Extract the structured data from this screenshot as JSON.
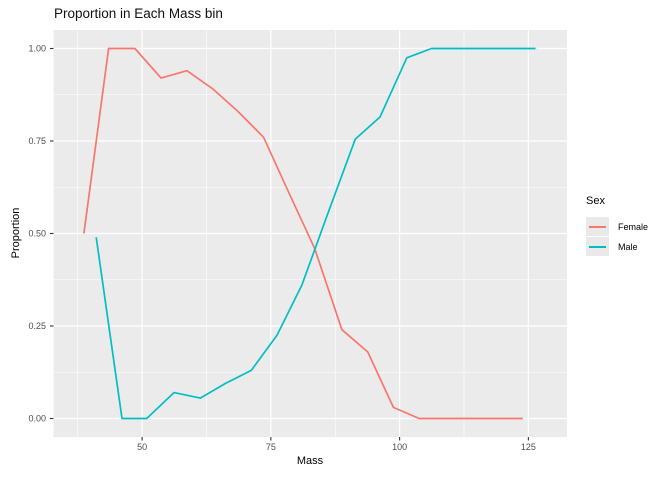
{
  "title": "Proportion in Each Mass bin",
  "colors": {
    "panel_background": "#EBEBEB",
    "gridline": "#FFFFFF",
    "tick_mark": "#333333",
    "tick_label": "#4D4D4D",
    "female_line": "#F8766D",
    "male_line": "#00BFC4",
    "legend_key_background": "#E9E9E9"
  },
  "chart_data": {
    "type": "line",
    "title": "Proportion in Each Mass bin",
    "xlabel": "Mass",
    "ylabel": "Proportion",
    "xlim": [
      32.8,
      132.5
    ],
    "ylim": [
      -0.05,
      1.05
    ],
    "x_ticks": [
      50,
      75,
      100,
      125
    ],
    "x_tick_labels": [
      "50",
      "75",
      "100",
      "125"
    ],
    "x_minor_ticks": [
      37.5,
      62.5,
      87.5,
      112.5
    ],
    "y_ticks": [
      0.0,
      0.25,
      0.5,
      0.75,
      1.0
    ],
    "y_tick_labels": [
      "0.00",
      "0.25",
      "0.50",
      "0.75",
      "1.00"
    ],
    "y_minor_ticks": [
      0.125,
      0.375,
      0.625,
      0.875
    ],
    "grid": "white major and minor gridlines on grey panel",
    "legend": {
      "title": "Sex",
      "position": "right",
      "entries": [
        {
          "label": "Female",
          "color": "#F8766D"
        },
        {
          "label": "Male",
          "color": "#00BFC4"
        }
      ]
    },
    "series": [
      {
        "name": "Female",
        "color": "#F8766D",
        "x": [
          38.7,
          43.5,
          48.6,
          53.7,
          58.7,
          63.8,
          68.6,
          73.6,
          78.5,
          83.5,
          88.8,
          93.8,
          98.8,
          103.8,
          123.9
        ],
        "y": [
          0.5,
          1.0,
          1.0,
          0.92,
          0.94,
          0.89,
          0.83,
          0.76,
          0.61,
          0.46,
          0.24,
          0.18,
          0.03,
          0.0,
          0.0
        ]
      },
      {
        "name": "Male",
        "color": "#00BFC4",
        "x": [
          41.1,
          46.1,
          50.9,
          56.2,
          61.3,
          66.2,
          71.2,
          76.2,
          81.0,
          86.1,
          91.4,
          96.2,
          101.4,
          106.2,
          126.4
        ],
        "y": [
          0.49,
          0.0,
          0.0,
          0.07,
          0.055,
          0.095,
          0.13,
          0.225,
          0.36,
          0.555,
          0.755,
          0.815,
          0.975,
          1.0,
          1.0
        ]
      }
    ]
  }
}
